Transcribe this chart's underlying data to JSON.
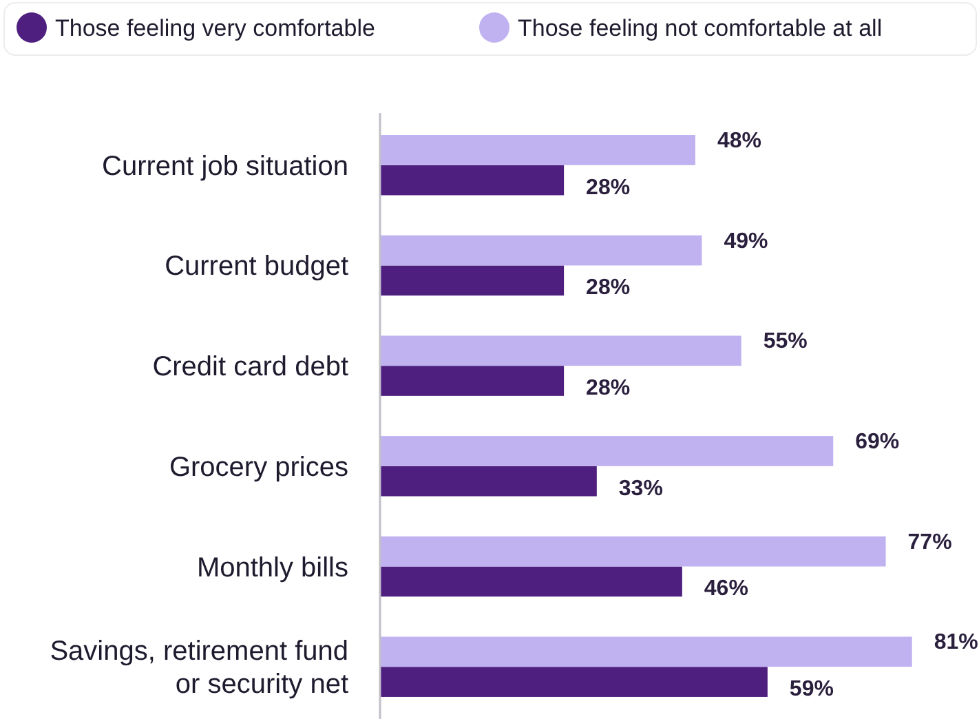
{
  "chart_data": {
    "type": "bar",
    "orientation": "horizontal",
    "categories": [
      "Current job situation",
      "Current budget",
      "Credit card debt",
      "Grocery prices",
      "Monthly bills",
      "Savings, retirement fund or security net"
    ],
    "series": [
      {
        "name": "Those feeling very comfortable",
        "color": "#4e1f7e",
        "values": [
          28,
          28,
          28,
          33,
          46,
          59
        ],
        "value_labels": [
          "28%",
          "28%",
          "28%",
          "33%",
          "46%",
          "59%"
        ]
      },
      {
        "name": "Those feeling not comfortable at all",
        "color": "#c0b2f0",
        "values": [
          48,
          49,
          55,
          69,
          77,
          81
        ],
        "value_labels": [
          "48%",
          "49%",
          "55%",
          "69%",
          "77%",
          "81%"
        ]
      }
    ],
    "legend": "top"
  }
}
